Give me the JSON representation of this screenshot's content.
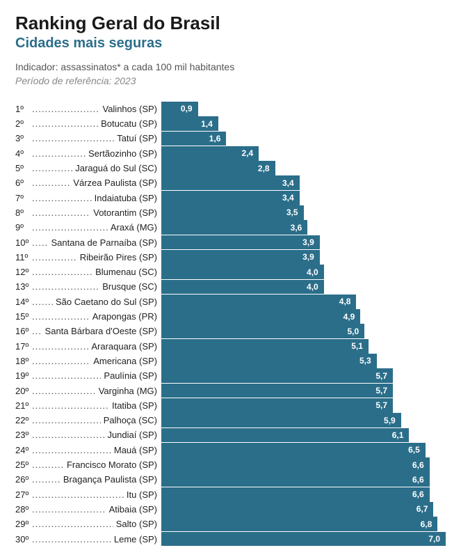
{
  "title": "Ranking Geral do Brasil",
  "subtitle": "Cidades mais seguras",
  "subtitle_color": "#2b6e8a",
  "indicator": "Indicador: assassinatos* a cada 100 mil habitantes",
  "period": "Período de referência: 2023",
  "chart": {
    "type": "bar-horizontal",
    "bar_color": "#2b6e8a",
    "background_color": "#ffffff",
    "xmax": 7.0,
    "label_fontsize": 13,
    "value_fontsize": 12,
    "value_color": "#ffffff",
    "rows": [
      {
        "rank": "1º",
        "city": "Valinhos (SP)",
        "value": 0.9,
        "label": "0,9"
      },
      {
        "rank": "2º",
        "city": "Botucatu (SP)",
        "value": 1.4,
        "label": "1,4"
      },
      {
        "rank": "3º",
        "city": "Tatuí (SP)",
        "value": 1.6,
        "label": "1,6"
      },
      {
        "rank": "4º",
        "city": "Sertãozinho (SP)",
        "value": 2.4,
        "label": "2,4"
      },
      {
        "rank": "5º",
        "city": "Jaraguá do Sul (SC)",
        "value": 2.8,
        "label": "2,8"
      },
      {
        "rank": "6º",
        "city": "Várzea Paulista (SP)",
        "value": 3.4,
        "label": "3,4"
      },
      {
        "rank": "7º",
        "city": "Indaiatuba (SP)",
        "value": 3.4,
        "label": "3,4"
      },
      {
        "rank": "8º",
        "city": "Votorantim (SP)",
        "value": 3.5,
        "label": "3,5"
      },
      {
        "rank": "9º",
        "city": "Araxá (MG)",
        "value": 3.6,
        "label": "3,6"
      },
      {
        "rank": "10º",
        "city": "Santana de Parnaíba (SP)",
        "value": 3.9,
        "label": "3,9"
      },
      {
        "rank": "11º",
        "city": "Ribeirão Pires (SP)",
        "value": 3.9,
        "label": "3,9"
      },
      {
        "rank": "12º",
        "city": "Blumenau (SC)",
        "value": 4.0,
        "label": "4,0"
      },
      {
        "rank": "13º",
        "city": "Brusque (SC)",
        "value": 4.0,
        "label": "4,0"
      },
      {
        "rank": "14º",
        "city": "São Caetano do Sul (SP)",
        "value": 4.8,
        "label": "4,8"
      },
      {
        "rank": "15º",
        "city": "Arapongas (PR)",
        "value": 4.9,
        "label": "4,9"
      },
      {
        "rank": "16º",
        "city": "Santa Bárbara d'Oeste (SP)",
        "value": 5.0,
        "label": "5,0"
      },
      {
        "rank": "17º",
        "city": "Araraquara (SP)",
        "value": 5.1,
        "label": "5,1"
      },
      {
        "rank": "18º",
        "city": "Americana (SP)",
        "value": 5.3,
        "label": "5,3"
      },
      {
        "rank": "19º",
        "city": "Paulínia (SP)",
        "value": 5.7,
        "label": "5,7"
      },
      {
        "rank": "20º",
        "city": "Varginha (MG)",
        "value": 5.7,
        "label": "5,7"
      },
      {
        "rank": "21º",
        "city": "Itatiba (SP)",
        "value": 5.7,
        "label": "5,7"
      },
      {
        "rank": "22º",
        "city": "Palhoça (SC)",
        "value": 5.9,
        "label": "5,9"
      },
      {
        "rank": "23º",
        "city": "Jundiaí (SP)",
        "value": 6.1,
        "label": "6,1"
      },
      {
        "rank": "24º",
        "city": "Mauá (SP)",
        "value": 6.5,
        "label": "6,5"
      },
      {
        "rank": "25º",
        "city": "Francisco Morato (SP)",
        "value": 6.6,
        "label": "6,6"
      },
      {
        "rank": "26º",
        "city": "Bragança Paulista (SP)",
        "value": 6.6,
        "label": "6,6"
      },
      {
        "rank": "27º",
        "city": "Itu (SP)",
        "value": 6.6,
        "label": "6,6"
      },
      {
        "rank": "28º",
        "city": "Atibaia (SP)",
        "value": 6.7,
        "label": "6,7"
      },
      {
        "rank": "29º",
        "city": "Salto (SP)",
        "value": 6.8,
        "label": "6,8"
      },
      {
        "rank": "30º",
        "city": "Leme (SP)",
        "value": 7.0,
        "label": "7,0"
      }
    ]
  }
}
